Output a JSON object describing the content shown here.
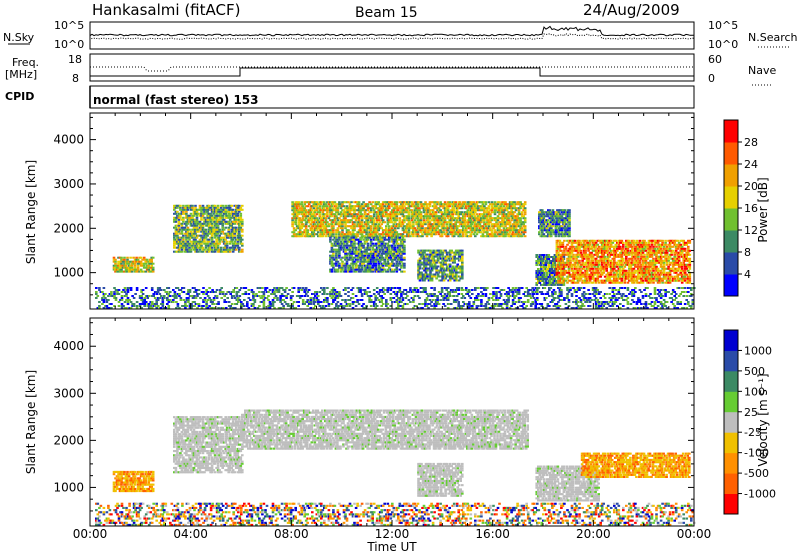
{
  "header": {
    "station": "Hankasalmi (fitACF)",
    "beam": "Beam 15",
    "date": "24/Aug/2009"
  },
  "panels": {
    "noise": {
      "left_label": "N.Sky",
      "right_label": "N.Search",
      "left_ticks": [
        "10^5",
        "10^0"
      ],
      "right_ticks": [
        "10^5",
        "10^0"
      ]
    },
    "freq": {
      "left_label_1": "Freq.",
      "left_label_2": "[MHz]",
      "left_ticks": [
        "18",
        "8"
      ],
      "right_label": "Nave",
      "right_ticks": [
        "60",
        "0"
      ]
    },
    "cpid": {
      "label": "CPID",
      "text": "normal (fast stereo) 153"
    }
  },
  "chart_data": [
    {
      "type": "heatmap",
      "name": "power",
      "ylabel": "Slant Range [km]",
      "xlabel": "Time UT",
      "x_ticks": [
        "00:00",
        "04:00",
        "08:00",
        "12:00",
        "16:00",
        "20:00",
        "00:00"
      ],
      "x_range_hours": [
        0,
        24
      ],
      "ylim": [
        180,
        4600
      ],
      "y_ticks": [
        1000,
        2000,
        3000,
        4000
      ],
      "colorbar": {
        "label": "Power [dB]",
        "ticks": [
          4,
          8,
          12,
          16,
          20,
          24,
          28
        ],
        "range": [
          0,
          32
        ],
        "colors": [
          "#0000ff",
          "#2a4ba8",
          "#3c8a64",
          "#70c030",
          "#e6d000",
          "#f0a000",
          "#ff5a00",
          "#ff0000"
        ]
      },
      "regions": [
        {
          "t0": 0.2,
          "t1": 24,
          "r0": 180,
          "r1": 650,
          "level": 0.25
        },
        {
          "t0": 0.9,
          "t1": 2.5,
          "r0": 1000,
          "r1": 1350,
          "level": 0.55
        },
        {
          "t0": 3.3,
          "t1": 6.0,
          "r0": 1450,
          "r1": 2500,
          "level": 0.4
        },
        {
          "t0": 8.0,
          "t1": 17.3,
          "r0": 1800,
          "r1": 2600,
          "level": 0.55
        },
        {
          "t0": 9.5,
          "t1": 12.5,
          "r0": 1000,
          "r1": 1800,
          "level": 0.3
        },
        {
          "t0": 13.0,
          "t1": 14.8,
          "r0": 800,
          "r1": 1500,
          "level": 0.35
        },
        {
          "t0": 17.7,
          "t1": 18.8,
          "r0": 700,
          "r1": 1400,
          "level": 0.3
        },
        {
          "t0": 18.5,
          "t1": 23.8,
          "r0": 750,
          "r1": 1700,
          "level": 0.7
        },
        {
          "t0": 17.8,
          "t1": 19.0,
          "r0": 1800,
          "r1": 2400,
          "level": 0.3
        }
      ]
    },
    {
      "type": "heatmap",
      "name": "velocity",
      "ylabel": "Slant Range [km]",
      "xlabel": "Time UT",
      "x_ticks": [
        "00:00",
        "04:00",
        "08:00",
        "12:00",
        "16:00",
        "20:00",
        "00:00"
      ],
      "x_range_hours": [
        0,
        24
      ],
      "ylim": [
        180,
        4600
      ],
      "y_ticks": [
        1000,
        2000,
        3000,
        4000
      ],
      "colorbar": {
        "label": "Velocity [m s⁻¹]",
        "ticks": [
          "1000",
          "500",
          "100",
          "25",
          "-25",
          "-100",
          "-500",
          "-1000"
        ],
        "colors": [
          "#0000d0",
          "#2a4ba8",
          "#3c8a64",
          "#66cc33",
          "#bebebe",
          "#f0c000",
          "#ff9000",
          "#ff6000",
          "#ff0000"
        ]
      },
      "regions": [
        {
          "t0": 0.2,
          "t1": 24,
          "r0": 180,
          "r1": 650,
          "kind": "mixed"
        },
        {
          "t0": 0.9,
          "t1": 2.5,
          "r0": 900,
          "r1": 1350,
          "kind": "orange"
        },
        {
          "t0": 3.3,
          "t1": 6.0,
          "r0": 1300,
          "r1": 2500,
          "kind": "gray"
        },
        {
          "t0": 6.0,
          "t1": 17.4,
          "r0": 1800,
          "r1": 2650,
          "kind": "gray"
        },
        {
          "t0": 13.0,
          "t1": 14.8,
          "r0": 800,
          "r1": 1500,
          "kind": "gray"
        },
        {
          "t0": 17.7,
          "t1": 20.2,
          "r0": 700,
          "r1": 1450,
          "kind": "gray"
        },
        {
          "t0": 19.5,
          "t1": 23.8,
          "r0": 1200,
          "r1": 1700,
          "kind": "orange"
        }
      ]
    }
  ]
}
